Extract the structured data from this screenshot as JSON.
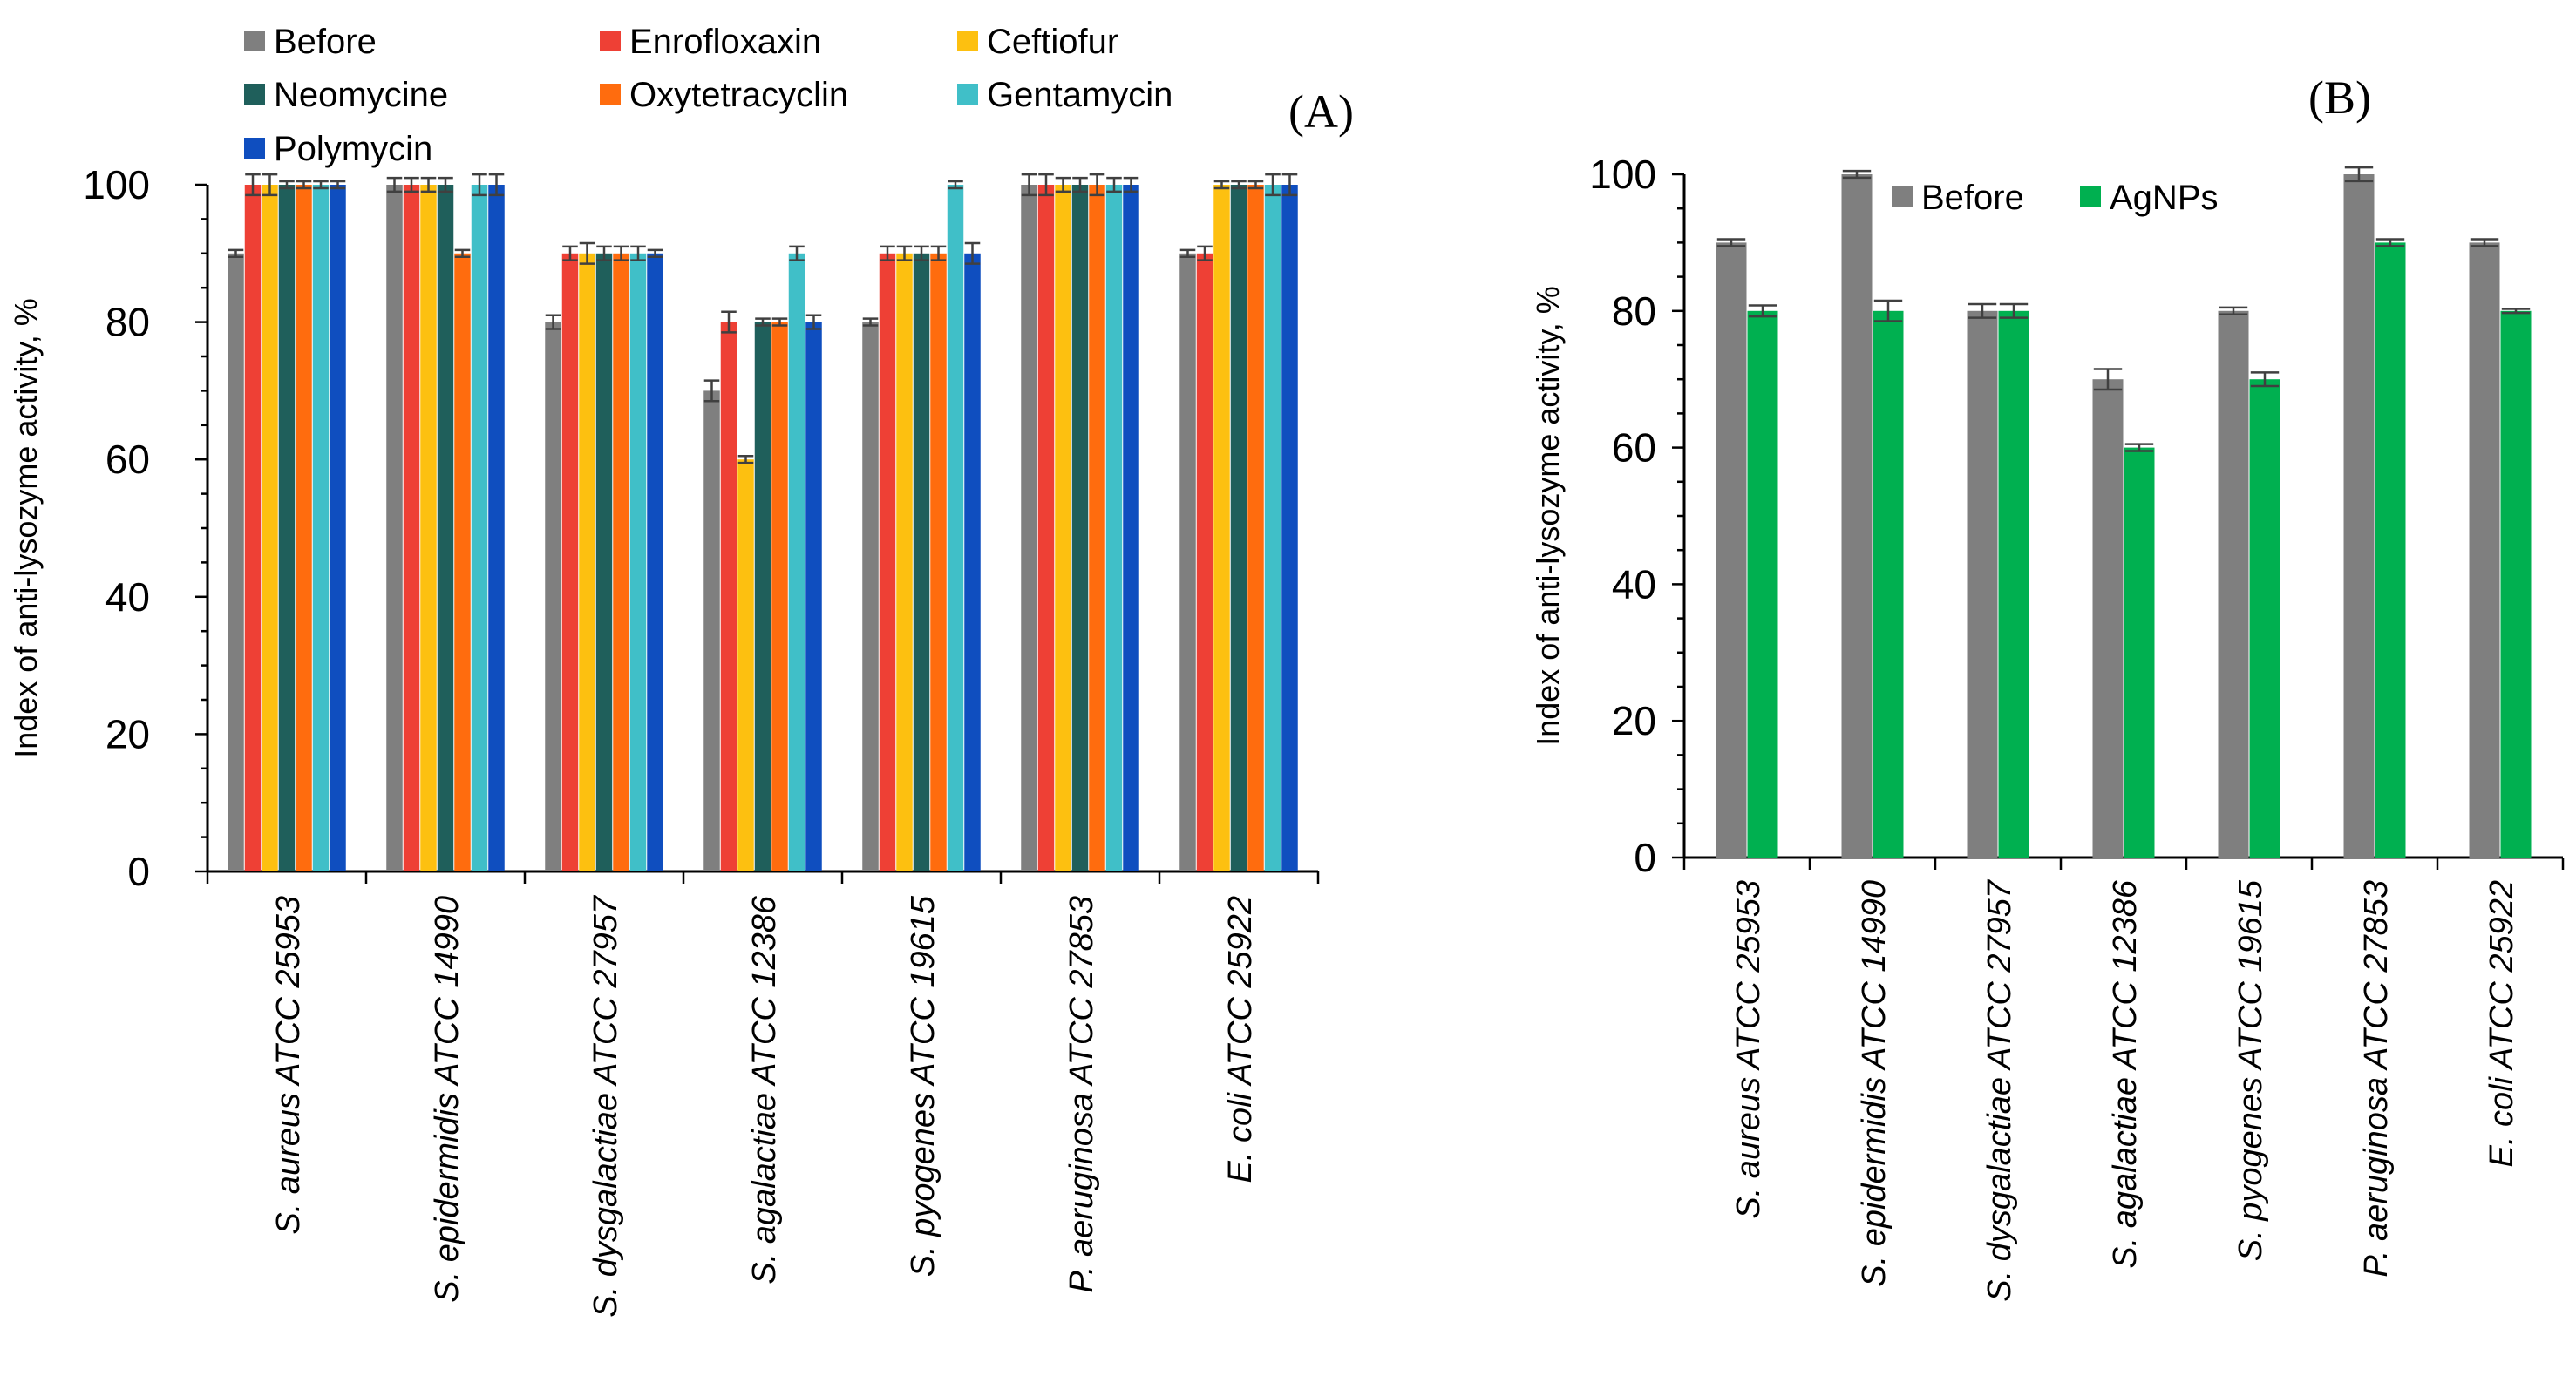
{
  "chart_data": [
    {
      "type": "bar",
      "panel_label": "(A)",
      "ylabel": "Index of anti-lysozyme activity, %",
      "xlabel": "",
      "ylim": [
        0,
        100
      ],
      "yticks": [
        0,
        20,
        40,
        60,
        80,
        100
      ],
      "categories": [
        "S. aureus ATCC 25953",
        "S. epidermidis ATCC 14990",
        "S. dysgalactiae ATCC 27957",
        "S. agalactiae ATCC 12386",
        "S. pyogenes ATCC 19615",
        "P. aeruginosa ATCC 27853",
        "E. coli ATCC 25922"
      ],
      "legend_position": "top",
      "series": [
        {
          "name": "Before",
          "color": "#7F7F7F",
          "values": [
            90,
            100,
            80,
            70,
            80,
            100,
            90
          ]
        },
        {
          "name": "Enrofloxaxin",
          "color": "#EE4035",
          "values": [
            100,
            100,
            90,
            80,
            90,
            100,
            90
          ]
        },
        {
          "name": "Ceftiofur",
          "color": "#FDC010",
          "values": [
            100,
            100,
            90,
            60,
            90,
            100,
            100
          ]
        },
        {
          "name": "Neomycine",
          "color": "#1F5F5B",
          "values": [
            100,
            100,
            90,
            80,
            90,
            100,
            100
          ]
        },
        {
          "name": "Oxytetracyclin",
          "color": "#FF6C0E",
          "values": [
            100,
            90,
            90,
            80,
            90,
            100,
            100
          ]
        },
        {
          "name": "Gentamycin",
          "color": "#40BFC8",
          "values": [
            100,
            100,
            90,
            90,
            100,
            100,
            100
          ]
        },
        {
          "name": "Polymycin",
          "color": "#0F4EBF",
          "values": [
            100,
            100,
            90,
            80,
            90,
            100,
            100
          ]
        }
      ],
      "errors": [
        [
          0.5,
          1,
          1,
          1.5,
          0.5,
          1.5,
          0.5
        ],
        [
          1.5,
          1,
          1,
          1.5,
          1,
          1.5,
          1
        ],
        [
          1.5,
          1,
          1.5,
          0.5,
          1,
          1,
          0.5
        ],
        [
          0.5,
          1,
          1,
          0.5,
          1,
          1,
          0.5
        ],
        [
          0.5,
          0.5,
          1,
          0.5,
          1,
          1.5,
          0.5
        ],
        [
          0.5,
          1.5,
          1,
          1,
          0.5,
          1,
          1.5
        ],
        [
          0.5,
          1.5,
          0.5,
          1,
          1.5,
          1,
          1.5
        ]
      ]
    },
    {
      "type": "bar",
      "panel_label": "(B)",
      "ylabel": "Index of anti-lysozyme activity, %",
      "xlabel": "",
      "ylim": [
        0,
        100
      ],
      "yticks": [
        0,
        20,
        40,
        60,
        80,
        100
      ],
      "categories": [
        "S. aureus ATCC 25953",
        "S. epidermidis ATCC 14990",
        "S. dysgalactiae ATCC 27957",
        "S. agalactiae ATCC 12386",
        "S. pyogenes ATCC 19615",
        "P. aeruginosa ATCC 27853",
        "E. coli ATCC 25922"
      ],
      "legend_position": "top-left",
      "series": [
        {
          "name": "Before",
          "color": "#7F7F7F",
          "values": [
            90,
            100,
            80,
            70,
            80,
            100,
            90
          ]
        },
        {
          "name": "AgNPs",
          "color": "#00B050",
          "values": [
            80,
            80,
            80,
            60,
            70,
            90,
            80
          ]
        }
      ],
      "errors": [
        [
          0.5,
          0.5,
          1,
          1.5,
          0.5,
          1,
          0.5
        ],
        [
          0.8,
          1.5,
          1,
          0.5,
          1,
          0.5,
          0.3
        ]
      ]
    }
  ]
}
